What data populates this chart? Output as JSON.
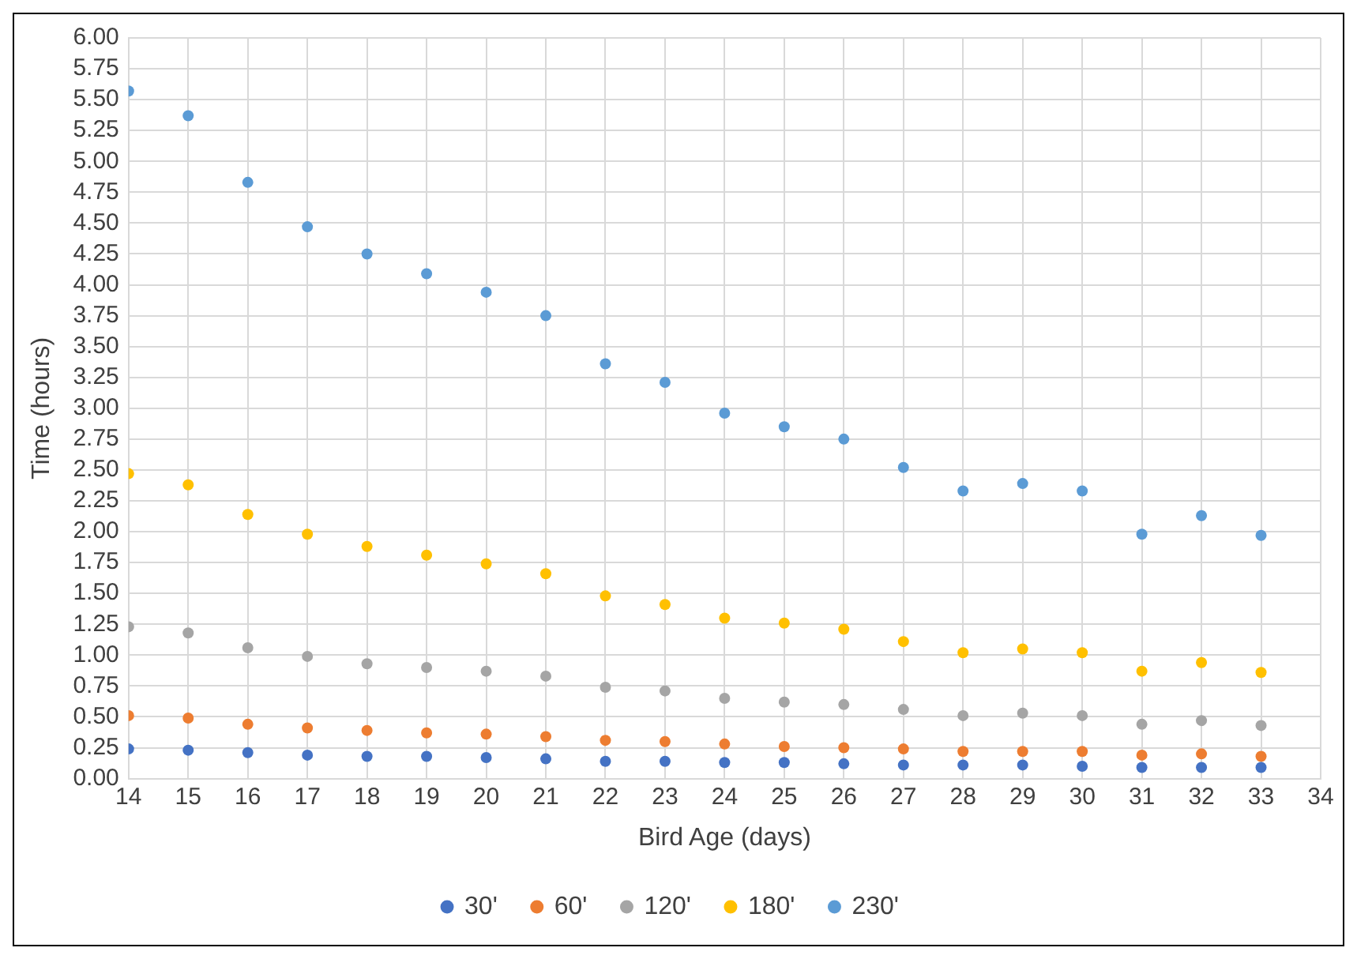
{
  "chart_data": {
    "type": "scatter",
    "xlabel": "Bird Age (days)",
    "ylabel": "Time (hours)",
    "x": [
      14,
      15,
      16,
      17,
      18,
      19,
      20,
      21,
      22,
      23,
      24,
      25,
      26,
      27,
      28,
      29,
      30,
      31,
      32,
      33
    ],
    "xlim": [
      14,
      34
    ],
    "xticks": [
      14,
      15,
      16,
      17,
      18,
      19,
      20,
      21,
      22,
      23,
      24,
      25,
      26,
      27,
      28,
      29,
      30,
      31,
      32,
      33,
      34
    ],
    "ylim": [
      0,
      6
    ],
    "yticks": [
      {
        "value": 0,
        "label": "0.00"
      },
      {
        "value": 0.25,
        "label": "0.25"
      },
      {
        "value": 0.5,
        "label": "0.50"
      },
      {
        "value": 0.75,
        "label": "0.75"
      },
      {
        "value": 1,
        "label": "1.00"
      },
      {
        "value": 1.25,
        "label": "1.25"
      },
      {
        "value": 1.5,
        "label": "1.50"
      },
      {
        "value": 1.75,
        "label": "1.75"
      },
      {
        "value": 2,
        "label": "2.00"
      },
      {
        "value": 2.25,
        "label": "2.25"
      },
      {
        "value": 2.5,
        "label": "2.50"
      },
      {
        "value": 2.75,
        "label": "2.75"
      },
      {
        "value": 3,
        "label": "3.00"
      },
      {
        "value": 3.25,
        "label": "3.25"
      },
      {
        "value": 3.5,
        "label": "3.50"
      },
      {
        "value": 3.75,
        "label": "3.75"
      },
      {
        "value": 4,
        "label": "4.00"
      },
      {
        "value": 4.25,
        "label": "4.25"
      },
      {
        "value": 4.5,
        "label": "4.50"
      },
      {
        "value": 4.75,
        "label": "4.75"
      },
      {
        "value": 5,
        "label": "5.00"
      },
      {
        "value": 5.25,
        "label": "5.25"
      },
      {
        "value": 5.5,
        "label": "5.50"
      },
      {
        "value": 5.75,
        "label": "5.75"
      },
      {
        "value": 6,
        "label": "6.00"
      }
    ],
    "grid": true,
    "legend": "bottom",
    "marker": "circle",
    "series": [
      {
        "name": "30'",
        "color": "#4472c4",
        "values": [
          0.24,
          0.23,
          0.21,
          0.19,
          0.18,
          0.18,
          0.17,
          0.16,
          0.14,
          0.14,
          0.13,
          0.13,
          0.12,
          0.11,
          0.11,
          0.11,
          0.1,
          0.09,
          0.09,
          0.09
        ]
      },
      {
        "name": "60'",
        "color": "#ed7d31",
        "values": [
          0.51,
          0.49,
          0.44,
          0.41,
          0.39,
          0.37,
          0.36,
          0.34,
          0.31,
          0.3,
          0.28,
          0.26,
          0.25,
          0.24,
          0.22,
          0.22,
          0.22,
          0.19,
          0.2,
          0.18
        ]
      },
      {
        "name": "120'",
        "color": "#a5a5a5",
        "values": [
          1.23,
          1.18,
          1.06,
          0.99,
          0.93,
          0.9,
          0.87,
          0.83,
          0.74,
          0.71,
          0.65,
          0.62,
          0.6,
          0.56,
          0.51,
          0.53,
          0.51,
          0.44,
          0.47,
          0.43
        ]
      },
      {
        "name": "180'",
        "color": "#ffc000",
        "values": [
          2.47,
          2.38,
          2.14,
          1.98,
          1.88,
          1.81,
          1.74,
          1.66,
          1.48,
          1.41,
          1.3,
          1.26,
          1.21,
          1.11,
          1.02,
          1.05,
          1.02,
          0.87,
          0.94,
          0.86
        ]
      },
      {
        "name": "230'",
        "color": "#5b9bd5",
        "values": [
          5.57,
          5.37,
          4.83,
          4.47,
          4.25,
          4.09,
          3.94,
          3.75,
          3.36,
          3.21,
          2.96,
          2.85,
          2.75,
          2.52,
          2.33,
          2.39,
          2.33,
          1.98,
          2.13,
          1.97
        ]
      }
    ]
  }
}
